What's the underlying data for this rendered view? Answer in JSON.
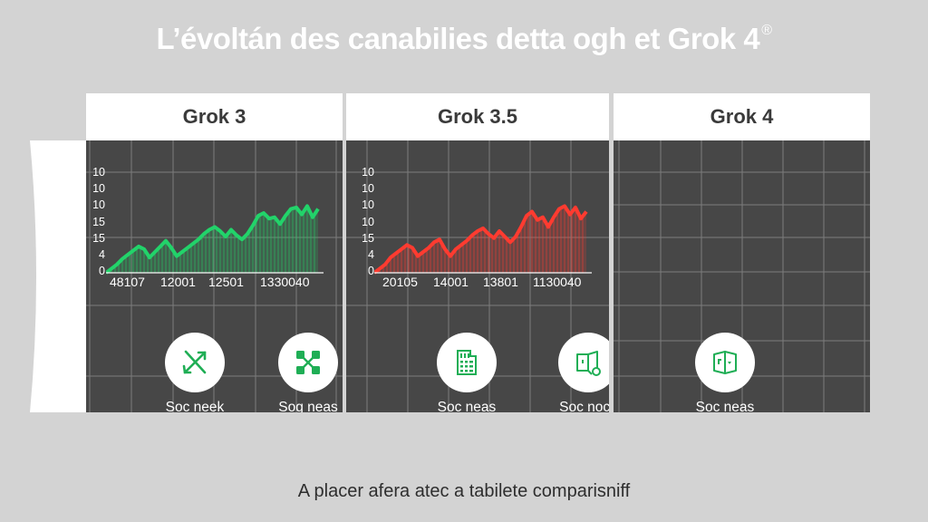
{
  "page": {
    "title": "L’évoltán des canabilies detta ogh et Grok 4",
    "title_mark": "®",
    "caption": "A placer afera atec a tabilete comparisniff"
  },
  "colors": {
    "background": "#d3d3d3",
    "panel_header": "#ffffff",
    "panel_body": "#474747",
    "grid_line": "#8a8a8a",
    "green_series": "#22d36a",
    "red_series": "#ff3b30",
    "icon_green": "#1fae55"
  },
  "panels": [
    {
      "name": "Grok 3",
      "chart_color": "#22d36a",
      "y_ticks": [
        "10",
        "10",
        "10",
        "15",
        "15",
        "4",
        "0"
      ],
      "x_ticks": [
        "48107",
        "12001",
        "12501",
        "1330040"
      ],
      "features": [
        {
          "icon": "arrows-cross-icon",
          "label": "Soc neek"
        },
        {
          "icon": "network-nodes-icon",
          "label": "Sog neas"
        }
      ]
    },
    {
      "name": "Grok 3.5",
      "chart_color": "#ff3b30",
      "y_ticks": [
        "10",
        "10",
        "10",
        "10",
        "15",
        "4",
        "0"
      ],
      "x_ticks": [
        "20105",
        "14001",
        "13801",
        "1130040"
      ],
      "features": [
        {
          "icon": "spreadsheet-document-icon",
          "label": "Soc neas"
        },
        {
          "icon": "door-search-icon",
          "label": "Soc nock"
        }
      ]
    },
    {
      "name": "Grok 4",
      "chart_color": null,
      "y_ticks": [],
      "x_ticks": [],
      "features": [
        {
          "icon": "open-box-icon",
          "label": "Soc neas"
        }
      ]
    }
  ],
  "chart_data": [
    {
      "type": "area",
      "title": "Grok 3",
      "xlabel": "",
      "ylabel": "",
      "x_tick_labels": [
        "48107",
        "12001",
        "12501",
        "1330040"
      ],
      "y_tick_labels": [
        "0",
        "4",
        "15",
        "15",
        "10",
        "10",
        "10"
      ],
      "grid": true,
      "series": [
        {
          "name": "Grok 3",
          "color": "#22d36a",
          "values": [
            0,
            3,
            6,
            10,
            13,
            16,
            19,
            17,
            11,
            15,
            19,
            23,
            18,
            12,
            15,
            18,
            21,
            24,
            28,
            31,
            33,
            30,
            26,
            31,
            27,
            24,
            28,
            34,
            41,
            43,
            39,
            40,
            35,
            41,
            46,
            47,
            42,
            48,
            40,
            46
          ]
        }
      ],
      "ylim": [
        0,
        60
      ]
    },
    {
      "type": "area",
      "title": "Grok 3.5",
      "xlabel": "",
      "ylabel": "",
      "x_tick_labels": [
        "20105",
        "14001",
        "13801",
        "1130040"
      ],
      "y_tick_labels": [
        "0",
        "4",
        "15",
        "10",
        "10",
        "10",
        "10"
      ],
      "grid": true,
      "series": [
        {
          "name": "Grok 3.5",
          "color": "#ff3b30",
          "values": [
            0,
            3,
            6,
            11,
            14,
            17,
            20,
            18,
            12,
            15,
            18,
            22,
            24,
            17,
            12,
            17,
            20,
            23,
            27,
            30,
            32,
            28,
            25,
            30,
            26,
            22,
            26,
            33,
            41,
            44,
            38,
            40,
            33,
            40,
            46,
            48,
            42,
            47,
            39,
            44
          ]
        }
      ],
      "ylim": [
        0,
        60
      ]
    },
    {
      "type": "area",
      "title": "Grok 4",
      "xlabel": "",
      "ylabel": "",
      "grid": true,
      "series": []
    }
  ]
}
